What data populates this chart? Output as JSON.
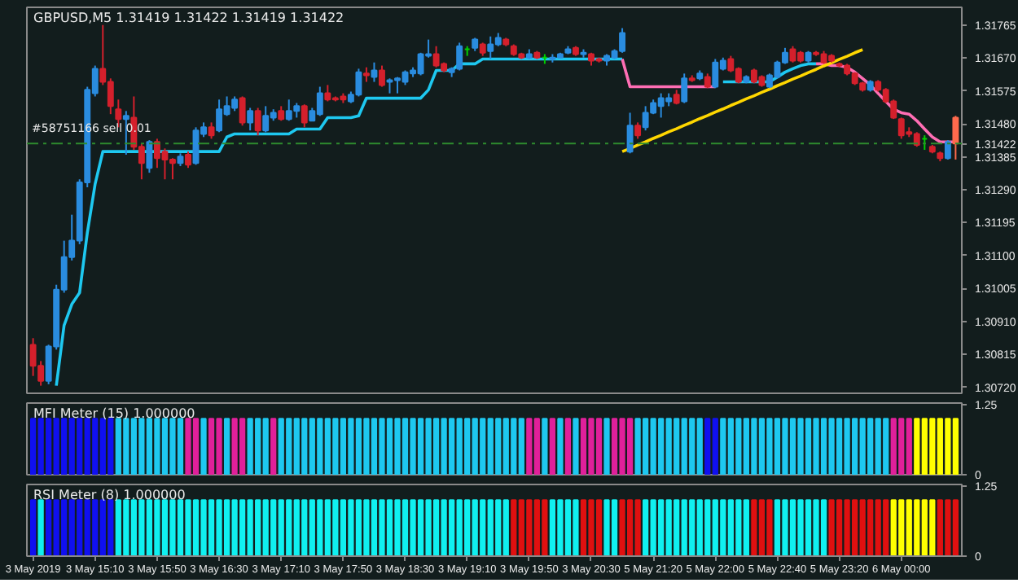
{
  "chart_data": [
    {
      "type": "candlestick",
      "title": "GBPUSD,M5 1.31419 1.31422 1.31419 1.31422",
      "categories": [
        null,
        null,
        null,
        null,
        null,
        null,
        null,
        null,
        null,
        null,
        null,
        null,
        null,
        null,
        null,
        null,
        null,
        null,
        null,
        null,
        null,
        null,
        null,
        null,
        null,
        null,
        null,
        null,
        null,
        null,
        null,
        null,
        null,
        null,
        null,
        null,
        null,
        null,
        null,
        null,
        null,
        null,
        null,
        null,
        null,
        null,
        null,
        null,
        null,
        null,
        null,
        null,
        null,
        null,
        null,
        null,
        null,
        null,
        null,
        null,
        null,
        null,
        null,
        null,
        null,
        null,
        null,
        null,
        null,
        null,
        null,
        null,
        null,
        null,
        null,
        null,
        null,
        null,
        null,
        null,
        null,
        null,
        null,
        null,
        null,
        null,
        null,
        null,
        null,
        null,
        null,
        null,
        null,
        null,
        null,
        null,
        null,
        null,
        null,
        null,
        null,
        null,
        null,
        null,
        null,
        null,
        null,
        null,
        null,
        null,
        null,
        null,
        null,
        null,
        null,
        null,
        null,
        null,
        null,
        null
      ],
      "ohlc": [
        [
          1.30843,
          1.30862,
          1.30753,
          1.30782
        ],
        [
          1.30782,
          1.30796,
          1.30725,
          1.30739
        ],
        [
          1.30739,
          1.30843,
          1.30729,
          1.30838
        ],
        [
          1.30838,
          1.31016,
          1.30829,
          1.31002
        ],
        [
          1.31002,
          1.31143,
          1.30993,
          1.31096
        ],
        [
          1.31096,
          1.31218,
          1.31086,
          1.31143
        ],
        [
          1.31143,
          1.3132,
          1.31133,
          1.31311
        ],
        [
          1.31311,
          1.31587,
          1.31297,
          1.31578
        ],
        [
          1.31568,
          1.31648,
          1.31559,
          1.31639
        ],
        [
          1.31639,
          1.31765,
          1.31592,
          1.31601
        ],
        [
          1.31601,
          1.31611,
          1.31508,
          1.31531
        ],
        [
          1.31522,
          1.3155,
          1.3147,
          1.31494
        ],
        [
          1.31494,
          1.31517,
          1.31391,
          1.31503
        ],
        [
          1.31498,
          1.31559,
          1.31405,
          1.31414
        ],
        [
          1.31414,
          1.31423,
          1.3132,
          1.31367
        ],
        [
          1.31353,
          1.31433,
          1.31339,
          1.31428
        ],
        [
          1.31428,
          1.31437,
          1.31353,
          1.31381
        ],
        [
          1.314,
          1.31409,
          1.3132,
          1.31377
        ],
        [
          1.31377,
          1.31381,
          1.3132,
          1.31367
        ],
        [
          1.31367,
          1.31395,
          1.31358,
          1.31386
        ],
        [
          1.31391,
          1.314,
          1.31353,
          1.31362
        ],
        [
          1.31367,
          1.3147,
          1.31362,
          1.31461
        ],
        [
          1.31451,
          1.31484,
          1.31442,
          1.3147
        ],
        [
          1.3147,
          1.31484,
          1.31437,
          1.31447
        ],
        [
          1.31461,
          1.3155,
          1.31456,
          1.31522
        ],
        [
          1.31508,
          1.31559,
          1.31503,
          1.31531
        ],
        [
          1.31526,
          1.31559,
          1.31517,
          1.3155
        ],
        [
          1.31554,
          1.31559,
          1.31475,
          1.31484
        ],
        [
          1.31484,
          1.31526,
          1.31461,
          1.31517
        ],
        [
          1.31517,
          1.31526,
          1.31447,
          1.31461
        ],
        [
          1.31461,
          1.31531,
          1.31456,
          1.31503
        ],
        [
          1.31498,
          1.31522,
          1.31489,
          1.31512
        ],
        [
          1.31517,
          1.31531,
          1.31489,
          1.31494
        ],
        [
          1.31494,
          1.3155,
          1.31489,
          1.31517
        ],
        [
          1.31517,
          1.3154,
          1.31498,
          1.31531
        ],
        [
          1.31531,
          1.31536,
          1.3147,
          1.31484
        ],
        [
          1.31489,
          1.31526,
          1.31489,
          1.31517
        ],
        [
          1.31508,
          1.31587,
          1.31503,
          1.31568
        ],
        [
          1.31568,
          1.31592,
          1.31545,
          1.3155
        ],
        [
          1.31554,
          1.31559,
          1.31545,
          1.3155
        ],
        [
          1.31559,
          1.31568,
          1.3154,
          1.3155
        ],
        [
          1.31545,
          1.31573,
          1.3154,
          1.31564
        ],
        [
          1.31564,
          1.31639,
          1.31559,
          1.31629
        ],
        [
          1.31625,
          1.31643,
          1.31601,
          1.3162
        ],
        [
          1.31615,
          1.31657,
          1.31601,
          1.31634
        ],
        [
          1.31634,
          1.31648,
          1.31587,
          1.31592
        ],
        [
          1.31601,
          1.31611,
          1.31568,
          1.31606
        ],
        [
          1.31606,
          1.31615,
          1.31568,
          1.31611
        ],
        [
          1.31601,
          1.31634,
          1.31592,
          1.31629
        ],
        [
          1.31625,
          1.31643,
          1.31615,
          1.31634
        ],
        [
          1.31625,
          1.31685,
          1.3162,
          1.31681
        ],
        [
          1.31676,
          1.31723,
          1.31671,
          1.31681
        ],
        [
          1.31681,
          1.31704,
          1.31643,
          1.31648
        ],
        [
          1.31653,
          1.31657,
          1.31629,
          1.31634
        ],
        [
          1.31629,
          1.31643,
          1.31615,
          1.31639
        ],
        [
          1.31639,
          1.31714,
          1.31634,
          1.31704
        ],
        [
          1.31695,
          1.31704,
          1.31676,
          1.31695
        ],
        [
          1.31699,
          1.31728,
          1.3169,
          1.31723
        ],
        [
          1.31709,
          1.31714,
          1.31676,
          1.31685
        ],
        [
          1.3169,
          1.31732,
          1.31667,
          1.31709
        ],
        [
          1.31709,
          1.31742,
          1.31704,
          1.31728
        ],
        [
          1.31723,
          1.31728,
          1.31704,
          1.31709
        ],
        [
          1.31704,
          1.31709,
          1.31676,
          1.31681
        ],
        [
          1.31681,
          1.31685,
          1.31667,
          1.31671
        ],
        [
          1.31671,
          1.31695,
          1.31667,
          1.31681
        ],
        [
          1.31685,
          1.3169,
          1.31667,
          1.31671
        ],
        [
          1.31671,
          1.31681,
          1.31653,
          1.31671
        ],
        [
          1.31667,
          1.31681,
          1.31657,
          1.31671
        ],
        [
          1.31671,
          1.31685,
          1.31671,
          1.31681
        ],
        [
          1.31685,
          1.31704,
          1.31681,
          1.31695
        ],
        [
          1.31699,
          1.31704,
          1.31676,
          1.31681
        ],
        [
          1.31681,
          1.31695,
          1.31671,
          1.31685
        ],
        [
          1.31681,
          1.31685,
          1.31648,
          1.31662
        ],
        [
          1.31667,
          1.31671,
          1.31657,
          1.31662
        ],
        [
          1.31662,
          1.31681,
          1.31648,
          1.31676
        ],
        [
          1.31671,
          1.31695,
          1.31667,
          1.3169
        ],
        [
          1.3169,
          1.31756,
          1.31685,
          1.31742
        ],
        [
          1.314,
          1.31512,
          1.31395,
          1.31475
        ],
        [
          1.31475,
          1.31484,
          1.31437,
          1.31447
        ],
        [
          1.3147,
          1.31531,
          1.31461,
          1.31512
        ],
        [
          1.31512,
          1.3155,
          1.31508,
          1.3154
        ],
        [
          1.31531,
          1.31568,
          1.31498,
          1.31554
        ],
        [
          1.31545,
          1.31568,
          1.31531,
          1.31554
        ],
        [
          1.31564,
          1.31578,
          1.31536,
          1.3154
        ],
        [
          1.31545,
          1.31625,
          1.3154,
          1.31611
        ],
        [
          1.31611,
          1.3162,
          1.31601,
          1.31606
        ],
        [
          1.31611,
          1.31634,
          1.31606,
          1.31625
        ],
        [
          1.31615,
          1.31625,
          1.31583,
          1.31587
        ],
        [
          1.31587,
          1.31667,
          1.31583,
          1.31657
        ],
        [
          1.31639,
          1.31671,
          1.31634,
          1.31662
        ],
        [
          1.31667,
          1.31676,
          1.31629,
          1.31634
        ],
        [
          1.31639,
          1.31643,
          1.31597,
          1.31601
        ],
        [
          1.31601,
          1.3162,
          1.31597,
          1.31615
        ],
        [
          1.31634,
          1.31639,
          1.31597,
          1.31601
        ],
        [
          1.31615,
          1.3162,
          1.31587,
          1.31592
        ],
        [
          1.31587,
          1.31625,
          1.31583,
          1.3162
        ],
        [
          1.31615,
          1.31662,
          1.31611,
          1.31657
        ],
        [
          1.31657,
          1.31699,
          1.31653,
          1.31685
        ],
        [
          1.31695,
          1.31704,
          1.31657,
          1.31662
        ],
        [
          1.31685,
          1.3169,
          1.31657,
          1.31662
        ],
        [
          1.31662,
          1.3169,
          1.31657,
          1.31685
        ],
        [
          1.31685,
          1.3169,
          1.31676,
          1.31681
        ],
        [
          1.31681,
          1.3169,
          1.31653,
          1.31657
        ],
        [
          1.31676,
          1.31681,
          1.31657,
          1.31662
        ],
        [
          1.31653,
          1.31657,
          1.31643,
          1.31648
        ],
        [
          1.31648,
          1.31653,
          1.3162,
          1.31625
        ],
        [
          1.31625,
          1.31629,
          1.31592,
          1.31597
        ],
        [
          1.31597,
          1.31601,
          1.31573,
          1.31578
        ],
        [
          1.31578,
          1.31606,
          1.31573,
          1.31601
        ],
        [
          1.31601,
          1.31606,
          1.31573,
          1.31578
        ],
        [
          1.31578,
          1.31583,
          1.3154,
          1.31545
        ],
        [
          1.31545,
          1.3155,
          1.31494,
          1.31498
        ],
        [
          1.31494,
          1.31498,
          1.31437,
          1.31447
        ],
        [
          1.31456,
          1.3147,
          1.31442,
          1.31451
        ],
        [
          1.31451,
          1.31456,
          1.31414,
          1.31419
        ],
        [
          1.31437,
          1.31447,
          1.31405,
          1.31437
        ],
        [
          1.31414,
          1.31419,
          1.31395,
          1.314
        ],
        [
          1.31395,
          1.314,
          1.31372,
          1.31381
        ],
        [
          1.31381,
          1.31433,
          1.31377,
          1.31428
        ],
        [
          1.31498,
          1.31503,
          1.31377,
          1.31423
        ]
      ],
      "colors": [
        "#d4202c",
        "#d4202c",
        "#2a8cdf",
        "#2a8cdf",
        "#2a8cdf",
        "#2a8cdf",
        "#2a8cdf",
        "#2a8cdf",
        "#2a8cdf",
        "#d4202c",
        "#d4202c",
        "#d4202c",
        "#2a8cdf",
        "#d4202c",
        "#d4202c",
        "#2a8cdf",
        "#d4202c",
        "#d4202c",
        "#d4202c",
        "#2a8cdf",
        "#d4202c",
        "#2a8cdf",
        "#2a8cdf",
        "#d4202c",
        "#2a8cdf",
        "#2a8cdf",
        "#2a8cdf",
        "#d4202c",
        "#2a8cdf",
        "#d4202c",
        "#2a8cdf",
        "#2a8cdf",
        "#d4202c",
        "#2a8cdf",
        "#2a8cdf",
        "#d4202c",
        "#2a8cdf",
        "#2a8cdf",
        "#d4202c",
        "#d4202c",
        "#d4202c",
        "#2a8cdf",
        "#2a8cdf",
        "#d4202c",
        "#2a8cdf",
        "#d4202c",
        "#2a8cdf",
        "#2a8cdf",
        "#2a8cdf",
        "#2a8cdf",
        "#2a8cdf",
        "#2a8cdf",
        "#d4202c",
        "#d4202c",
        "#2a8cdf",
        "#2a8cdf",
        "#00d000",
        "#2a8cdf",
        "#d4202c",
        "#2a8cdf",
        "#2a8cdf",
        "#d4202c",
        "#d4202c",
        "#d4202c",
        "#2a8cdf",
        "#d4202c",
        "#00d000",
        "#2a8cdf",
        "#2a8cdf",
        "#2a8cdf",
        "#d4202c",
        "#2a8cdf",
        "#d4202c",
        "#d4202c",
        "#2a8cdf",
        "#2a8cdf",
        "#2a8cdf",
        "#2a8cdf",
        "#d4202c",
        "#2a8cdf",
        "#2a8cdf",
        "#2a8cdf",
        "#2a8cdf",
        "#d4202c",
        "#2a8cdf",
        "#d4202c",
        "#2a8cdf",
        "#d4202c",
        "#2a8cdf",
        "#2a8cdf",
        "#d4202c",
        "#d4202c",
        "#2a8cdf",
        "#d4202c",
        "#d4202c",
        "#2a8cdf",
        "#2a8cdf",
        "#2a8cdf",
        "#d4202c",
        "#d4202c",
        "#2a8cdf",
        "#d4202c",
        "#d4202c",
        "#d4202c",
        "#d4202c",
        "#d4202c",
        "#d4202c",
        "#d4202c",
        "#2a8cdf",
        "#d4202c",
        "#d4202c",
        "#d4202c",
        "#d4202c",
        "#d4202c",
        "#d4202c",
        "#00d000",
        "#d4202c",
        "#d4202c",
        "#2a8cdf",
        "#ff6a4d"
      ],
      "series": [
        {
          "type": "line",
          "color": "#1ec8f0",
          "values": [
            null,
            null,
            null,
            1.30725,
            1.30899,
            1.3096,
            1.30993,
            1.31166,
            1.31306,
            1.314,
            1.314,
            1.314,
            1.314,
            1.314,
            1.314,
            1.314,
            1.314,
            1.314,
            1.314,
            1.314,
            1.314,
            1.314,
            1.314,
            1.314,
            1.314,
            1.31442,
            1.31451,
            1.31451,
            1.31451,
            1.31451,
            1.31451,
            1.31451,
            1.31451,
            1.31451,
            1.31465,
            1.31465,
            1.31465,
            1.31465,
            1.31498,
            1.31498,
            1.31498,
            1.31498,
            1.31503,
            1.31554,
            1.31554,
            1.31554,
            1.31554,
            1.31554,
            1.31554,
            1.31554,
            1.31554,
            1.31578,
            1.31634,
            1.31634,
            1.31634,
            1.31653,
            1.31653,
            1.31653,
            1.31667,
            1.31667,
            1.31667,
            1.31667,
            1.31667,
            1.31667,
            1.31667,
            1.31667,
            1.31667,
            1.31667,
            1.31667,
            1.31667,
            1.31667,
            1.31667,
            1.31667,
            1.31667,
            1.31667,
            1.31667,
            1.31667,
            null,
            null,
            null,
            null,
            null,
            null,
            null,
            null,
            null,
            null,
            null,
            null,
            1.31601,
            1.31601,
            1.31601,
            1.31601,
            1.31601,
            1.31601,
            1.31601,
            1.31615,
            1.31629,
            1.31639,
            1.31648,
            1.31653,
            1.31653,
            null,
            null,
            null,
            null,
            null,
            null,
            null,
            null,
            null,
            null,
            null,
            null,
            null,
            null,
            null,
            null,
            null,
            null
          ]
        },
        {
          "type": "line",
          "color": "#ff6eb4",
          "values": [
            null,
            null,
            null,
            null,
            null,
            null,
            null,
            null,
            null,
            null,
            null,
            null,
            null,
            null,
            null,
            null,
            null,
            null,
            null,
            null,
            null,
            null,
            null,
            null,
            null,
            null,
            null,
            null,
            null,
            null,
            null,
            null,
            null,
            null,
            null,
            null,
            null,
            null,
            null,
            null,
            null,
            null,
            null,
            null,
            null,
            null,
            null,
            null,
            null,
            null,
            null,
            null,
            null,
            null,
            null,
            null,
            null,
            null,
            null,
            null,
            null,
            null,
            null,
            null,
            null,
            null,
            null,
            null,
            null,
            null,
            null,
            null,
            null,
            null,
            null,
            null,
            1.31667,
            1.31587,
            1.31587,
            1.31587,
            1.31587,
            1.31587,
            1.31587,
            1.31587,
            1.31587,
            1.31587,
            1.31587,
            1.31587,
            1.31587,
            null,
            null,
            null,
            null,
            null,
            null,
            null,
            null,
            null,
            null,
            null,
            null,
            1.31653,
            1.31653,
            1.31648,
            1.31648,
            1.31643,
            1.31629,
            1.31611,
            1.31592,
            1.31568,
            1.31545,
            1.31522,
            1.31512,
            1.31508,
            1.31489,
            1.31465,
            1.31442,
            1.31428,
            1.31428,
            1.31428
          ]
        },
        {
          "type": "line",
          "color": "#ffd700",
          "values": [
            null,
            null,
            null,
            null,
            null,
            null,
            null,
            null,
            null,
            null,
            null,
            null,
            null,
            null,
            null,
            null,
            null,
            null,
            null,
            null,
            null,
            null,
            null,
            null,
            null,
            null,
            null,
            null,
            null,
            null,
            null,
            null,
            null,
            null,
            null,
            null,
            null,
            null,
            null,
            null,
            null,
            null,
            null,
            null,
            null,
            null,
            null,
            null,
            null,
            null,
            null,
            null,
            null,
            null,
            null,
            null,
            null,
            null,
            null,
            null,
            null,
            null,
            null,
            null,
            null,
            null,
            null,
            null,
            null,
            null,
            null,
            null,
            null,
            null,
            null,
            null,
            1.314,
            1.31409,
            1.31419,
            1.31428,
            1.31438,
            1.31447,
            1.31457,
            1.31466,
            1.31476,
            1.31485,
            1.31495,
            1.31504,
            1.31514,
            1.31523,
            1.31533,
            1.31542,
            1.31552,
            1.31561,
            1.31571,
            1.3158,
            1.3159,
            1.31599,
            1.31609,
            1.31618,
            1.31628,
            1.31637,
            1.31647,
            1.31656,
            1.31666,
            1.31675,
            1.31685,
            1.31694,
            null,
            null,
            null,
            null,
            null,
            null,
            null,
            null,
            null,
            null,
            null,
            null
          ]
        }
      ],
      "ylim": [
        1.30703,
        1.31816
      ],
      "yticks": [
        1.31765,
        {
          "value": 1.3167,
          "label": "1.31670"
        },
        1.31575,
        {
          "value": 1.3148,
          "label": "1.31480"
        },
        1.31422,
        1.31385,
        {
          "value": 1.3129,
          "label": "1.31290"
        },
        1.31195,
        {
          "value": 1.311,
          "label": "1.31100"
        },
        1.31005,
        {
          "value": 1.3091,
          "label": "1.30910"
        },
        1.30815,
        {
          "value": 1.3072,
          "label": "1.30720"
        }
      ],
      "ref_lines": [
        {
          "axis": "y",
          "value": 1.31423,
          "label": "#58751166 sell 0.01",
          "color": "#2e8b2e",
          "line_style": "dashed"
        }
      ],
      "tick_labels": "y"
    },
    {
      "type": "bar",
      "title": "MFI Meter (15) 1.000000",
      "categories": [
        null,
        null,
        null,
        null,
        null,
        null,
        null,
        null,
        null,
        null,
        null,
        null,
        null,
        null,
        null,
        null,
        null,
        null,
        null,
        null,
        null,
        null,
        null,
        null,
        null,
        null,
        null,
        null,
        null,
        null,
        null,
        null,
        null,
        null,
        null,
        null,
        null,
        null,
        null,
        null,
        null,
        null,
        null,
        null,
        null,
        null,
        null,
        null,
        null,
        null,
        null,
        null,
        null,
        null,
        null,
        null,
        null,
        null,
        null,
        null,
        null,
        null,
        null,
        null,
        null,
        null,
        null,
        null,
        null,
        null,
        null,
        null,
        null,
        null,
        null,
        null,
        null,
        null,
        null,
        null,
        null,
        null,
        null,
        null,
        null,
        null,
        null,
        null,
        null,
        null,
        null,
        null,
        null,
        null,
        null,
        null,
        null,
        null,
        null,
        null,
        null,
        null,
        null,
        null,
        null,
        null,
        null,
        null,
        null,
        null,
        null,
        null,
        null,
        null,
        null,
        null,
        null,
        null,
        null,
        null
      ],
      "values": [
        1,
        1,
        1,
        1,
        1,
        1,
        1,
        1,
        1,
        1,
        1,
        1,
        1,
        1,
        1,
        1,
        1,
        1,
        1,
        1,
        1,
        1,
        1,
        1,
        1,
        1,
        1,
        1,
        1,
        1,
        1,
        1,
        1,
        1,
        1,
        1,
        1,
        1,
        1,
        1,
        1,
        1,
        1,
        1,
        1,
        1,
        1,
        1,
        1,
        1,
        1,
        1,
        1,
        1,
        1,
        1,
        1,
        1,
        1,
        1,
        1,
        1,
        1,
        1,
        1,
        1,
        1,
        1,
        1,
        1,
        1,
        1,
        1,
        1,
        1,
        1,
        1,
        1,
        1,
        1,
        1,
        1,
        1,
        1,
        1,
        1,
        1,
        1,
        1,
        1,
        1,
        1,
        1,
        1,
        1,
        1,
        1,
        1,
        1,
        1,
        1,
        1,
        1,
        1,
        1,
        1,
        1,
        1,
        1,
        1,
        1,
        1,
        1,
        1,
        1,
        1,
        1,
        1,
        1,
        1
      ],
      "colors": [
        "#1010f0",
        "#1010f0",
        "#1010f0",
        "#1010f0",
        "#1010f0",
        "#1010f0",
        "#1010f0",
        "#1010f0",
        "#1010f0",
        "#1010f0",
        "#1010f0",
        "#1ec8f0",
        "#1ec8f0",
        "#1ec8f0",
        "#1ec8f0",
        "#1ec8f0",
        "#1ec8f0",
        "#1ec8f0",
        "#1ec8f0",
        "#1ec8f0",
        "#e0209a",
        "#e0209a",
        "#1ec8f0",
        "#e0209a",
        "#e0209a",
        "#1ec8f0",
        "#e0209a",
        "#e0209a",
        "#1ec8f0",
        "#1ec8f0",
        "#1ec8f0",
        "#e0209a",
        "#1ec8f0",
        "#1ec8f0",
        "#1ec8f0",
        "#1ec8f0",
        "#1ec8f0",
        "#1ec8f0",
        "#1ec8f0",
        "#1ec8f0",
        "#1ec8f0",
        "#1ec8f0",
        "#1ec8f0",
        "#1ec8f0",
        "#1ec8f0",
        "#1ec8f0",
        "#1ec8f0",
        "#1ec8f0",
        "#1ec8f0",
        "#1ec8f0",
        "#1ec8f0",
        "#1ec8f0",
        "#1ec8f0",
        "#1ec8f0",
        "#1ec8f0",
        "#1ec8f0",
        "#1ec8f0",
        "#1ec8f0",
        "#1ec8f0",
        "#1ec8f0",
        "#1ec8f0",
        "#1ec8f0",
        "#1ec8f0",
        "#1ec8f0",
        "#e0209a",
        "#e0209a",
        "#1ec8f0",
        "#e0209a",
        "#1ec8f0",
        "#e0209a",
        "#1ec8f0",
        "#e0209a",
        "#e0209a",
        "#e0209a",
        "#1ec8f0",
        "#e0209a",
        "#e0209a",
        "#e0209a",
        "#1ec8f0",
        "#1ec8f0",
        "#1ec8f0",
        "#1ec8f0",
        "#1ec8f0",
        "#1ec8f0",
        "#1ec8f0",
        "#1ec8f0",
        "#1ec8f0",
        "#1010f0",
        "#1010f0",
        "#1ec8f0",
        "#1ec8f0",
        "#1ec8f0",
        "#1ec8f0",
        "#1ec8f0",
        "#1ec8f0",
        "#1ec8f0",
        "#1ec8f0",
        "#1ec8f0",
        "#1ec8f0",
        "#1ec8f0",
        "#1ec8f0",
        "#1ec8f0",
        "#1ec8f0",
        "#1ec8f0",
        "#1ec8f0",
        "#1ec8f0",
        "#1ec8f0",
        "#1ec8f0",
        "#1ec8f0",
        "#1ec8f0",
        "#1ec8f0",
        "#e0209a",
        "#e0209a",
        "#e0209a",
        "#ffff00",
        "#ffff00",
        "#ffff00",
        "#ffff00",
        "#ffff00",
        "#ffff00"
      ],
      "ylim": [
        0,
        1.28
      ],
      "yticks": [
        0,
        1.25
      ],
      "tick_labels": "y"
    },
    {
      "type": "bar",
      "title": "RSI Meter (8) 1.000000",
      "categories": [
        "3 May 2019",
        null,
        null,
        null,
        null,
        null,
        null,
        null,
        "3 May 15:10",
        null,
        null,
        null,
        null,
        null,
        null,
        null,
        "3 May 15:50",
        null,
        null,
        null,
        null,
        null,
        null,
        null,
        "3 May 16:30",
        null,
        null,
        null,
        null,
        null,
        null,
        null,
        "3 May 17:10",
        null,
        null,
        null,
        null,
        null,
        null,
        null,
        "3 May 17:50",
        null,
        null,
        null,
        null,
        null,
        null,
        null,
        "3 May 18:30",
        null,
        null,
        null,
        null,
        null,
        null,
        null,
        "3 May 19:10",
        null,
        null,
        null,
        null,
        null,
        null,
        null,
        "3 May 19:50",
        null,
        null,
        null,
        null,
        null,
        null,
        null,
        "3 May 20:30",
        null,
        null,
        null,
        null,
        null,
        null,
        null,
        "5 May 21:20",
        null,
        null,
        null,
        null,
        null,
        null,
        null,
        "5 May 22:00",
        null,
        null,
        null,
        null,
        null,
        null,
        null,
        "5 May 22:40",
        null,
        null,
        null,
        null,
        null,
        null,
        null,
        "5 May 23:20",
        null,
        null,
        null,
        null,
        null,
        null,
        null,
        "6 May 00:00",
        null,
        null,
        null,
        null,
        null,
        null,
        null
      ],
      "values": [
        1,
        1,
        1,
        1,
        1,
        1,
        1,
        1,
        1,
        1,
        1,
        1,
        1,
        1,
        1,
        1,
        1,
        1,
        1,
        1,
        1,
        1,
        1,
        1,
        1,
        1,
        1,
        1,
        1,
        1,
        1,
        1,
        1,
        1,
        1,
        1,
        1,
        1,
        1,
        1,
        1,
        1,
        1,
        1,
        1,
        1,
        1,
        1,
        1,
        1,
        1,
        1,
        1,
        1,
        1,
        1,
        1,
        1,
        1,
        1,
        1,
        1,
        1,
        1,
        1,
        1,
        1,
        1,
        1,
        1,
        1,
        1,
        1,
        1,
        1,
        1,
        1,
        1,
        1,
        1,
        1,
        1,
        1,
        1,
        1,
        1,
        1,
        1,
        1,
        1,
        1,
        1,
        1,
        1,
        1,
        1,
        1,
        1,
        1,
        1,
        1,
        1,
        1,
        1,
        1,
        1,
        1,
        1,
        1,
        1,
        1,
        1,
        1,
        1,
        1,
        1,
        1,
        1,
        1,
        1
      ],
      "colors": [
        "#1010f0",
        "#10f0f0",
        "#1010f0",
        "#1010f0",
        "#1010f0",
        "#1010f0",
        "#1010f0",
        "#1010f0",
        "#1010f0",
        "#1010f0",
        "#1010f0",
        "#10f0f0",
        "#10f0f0",
        "#10f0f0",
        "#10f0f0",
        "#10f0f0",
        "#10f0f0",
        "#10f0f0",
        "#10f0f0",
        "#10f0f0",
        "#10f0f0",
        "#10f0f0",
        "#10f0f0",
        "#10f0f0",
        "#10f0f0",
        "#10f0f0",
        "#10f0f0",
        "#10f0f0",
        "#10f0f0",
        "#10f0f0",
        "#10f0f0",
        "#10f0f0",
        "#10f0f0",
        "#10f0f0",
        "#10f0f0",
        "#10f0f0",
        "#10f0f0",
        "#10f0f0",
        "#10f0f0",
        "#10f0f0",
        "#10f0f0",
        "#10f0f0",
        "#10f0f0",
        "#10f0f0",
        "#10f0f0",
        "#10f0f0",
        "#10f0f0",
        "#10f0f0",
        "#10f0f0",
        "#10f0f0",
        "#10f0f0",
        "#10f0f0",
        "#10f0f0",
        "#10f0f0",
        "#10f0f0",
        "#10f0f0",
        "#10f0f0",
        "#10f0f0",
        "#10f0f0",
        "#10f0f0",
        "#10f0f0",
        "#10f0f0",
        "#e01010",
        "#e01010",
        "#e01010",
        "#e01010",
        "#e01010",
        "#10f0f0",
        "#10f0f0",
        "#10f0f0",
        "#10f0f0",
        "#e01010",
        "#e01010",
        "#e01010",
        "#10f0f0",
        "#10f0f0",
        "#e01010",
        "#e01010",
        "#e01010",
        "#10f0f0",
        "#10f0f0",
        "#10f0f0",
        "#10f0f0",
        "#10f0f0",
        "#10f0f0",
        "#10f0f0",
        "#10f0f0",
        "#10f0f0",
        "#10f0f0",
        "#10f0f0",
        "#10f0f0",
        "#10f0f0",
        "#10f0f0",
        "#e01010",
        "#e01010",
        "#e01010",
        "#10f0f0",
        "#10f0f0",
        "#10f0f0",
        "#10f0f0",
        "#10f0f0",
        "#10f0f0",
        "#10f0f0",
        "#e01010",
        "#e01010",
        "#e01010",
        "#e01010",
        "#e01010",
        "#e01010",
        "#e01010",
        "#e01010",
        "#ffff00",
        "#ffff00",
        "#ffff00",
        "#ffff00",
        "#ffff00",
        "#ffff00",
        "#e01010",
        "#e01010",
        "#e01010"
      ],
      "ylim": [
        0,
        1.28
      ],
      "yticks": [
        0,
        1.25
      ]
    }
  ]
}
